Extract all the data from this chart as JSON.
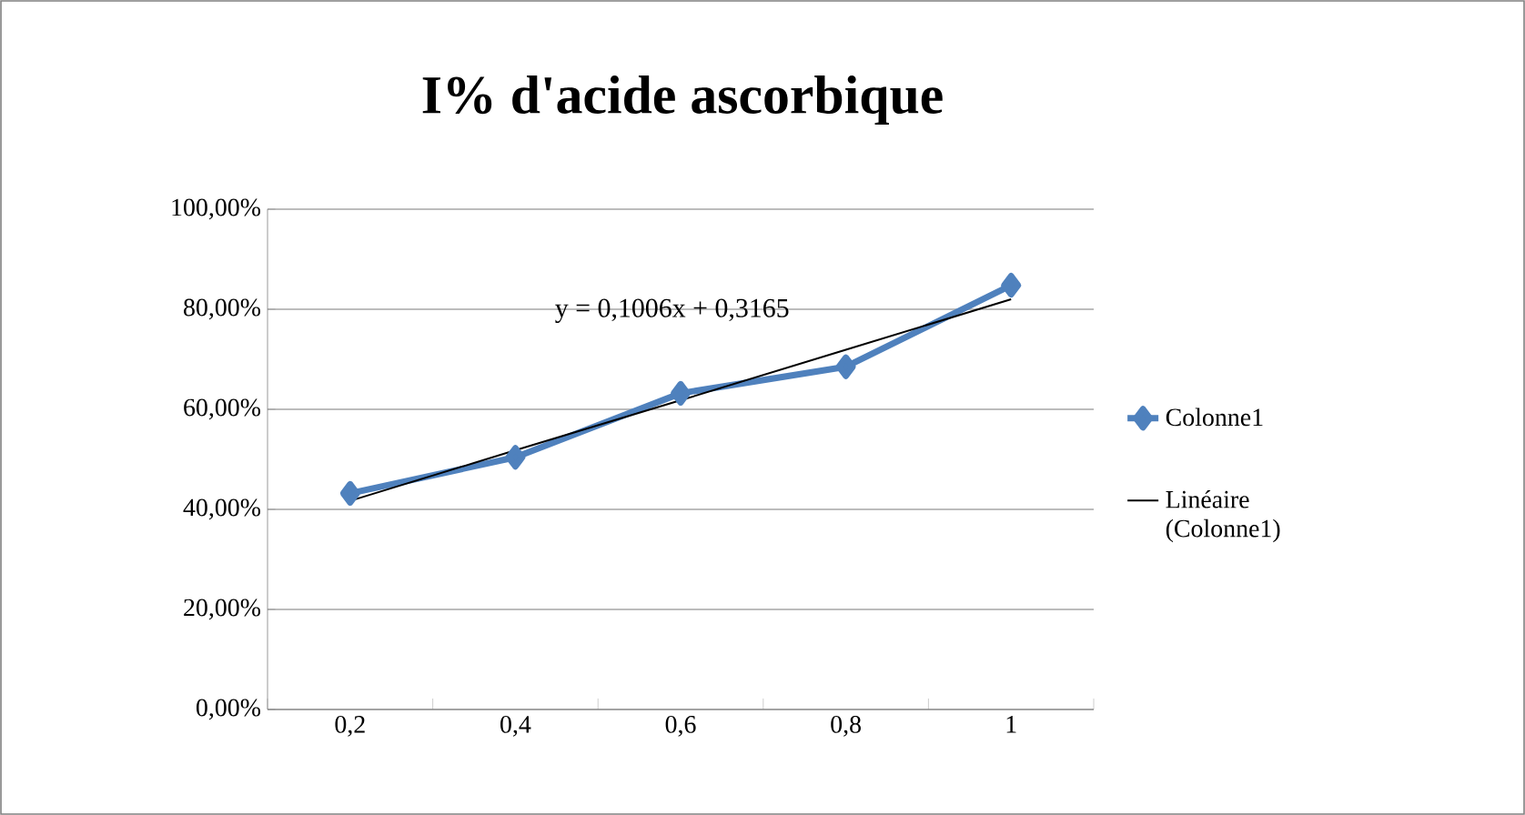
{
  "chart_data": {
    "type": "line",
    "title": "I% d'acide ascorbique",
    "categories": [
      "0,2",
      "0,4",
      "0,6",
      "0,8",
      "1"
    ],
    "series": [
      {
        "name": "Colonne1",
        "color": "#4f81bd",
        "marker": "diamond",
        "values": [
          43.2,
          50.4,
          63.2,
          68.5,
          84.8
        ]
      },
      {
        "name": "Linéaire (Colonne1)",
        "color": "#000000",
        "marker": "none",
        "values": [
          41.7,
          51.8,
          61.8,
          71.9,
          82.0
        ]
      }
    ],
    "ylim": [
      0,
      100
    ],
    "yticks": [
      {
        "value": 0,
        "label": "0,00%"
      },
      {
        "value": 20,
        "label": "20,00%"
      },
      {
        "value": 40,
        "label": "40,00%"
      },
      {
        "value": 60,
        "label": "60,00%"
      },
      {
        "value": 80,
        "label": "80,00%"
      },
      {
        "value": 100,
        "label": "100,00%"
      }
    ],
    "grid": "y",
    "legend": "right",
    "annotations": [
      "y = 0,1006x + 0,3165"
    ]
  }
}
